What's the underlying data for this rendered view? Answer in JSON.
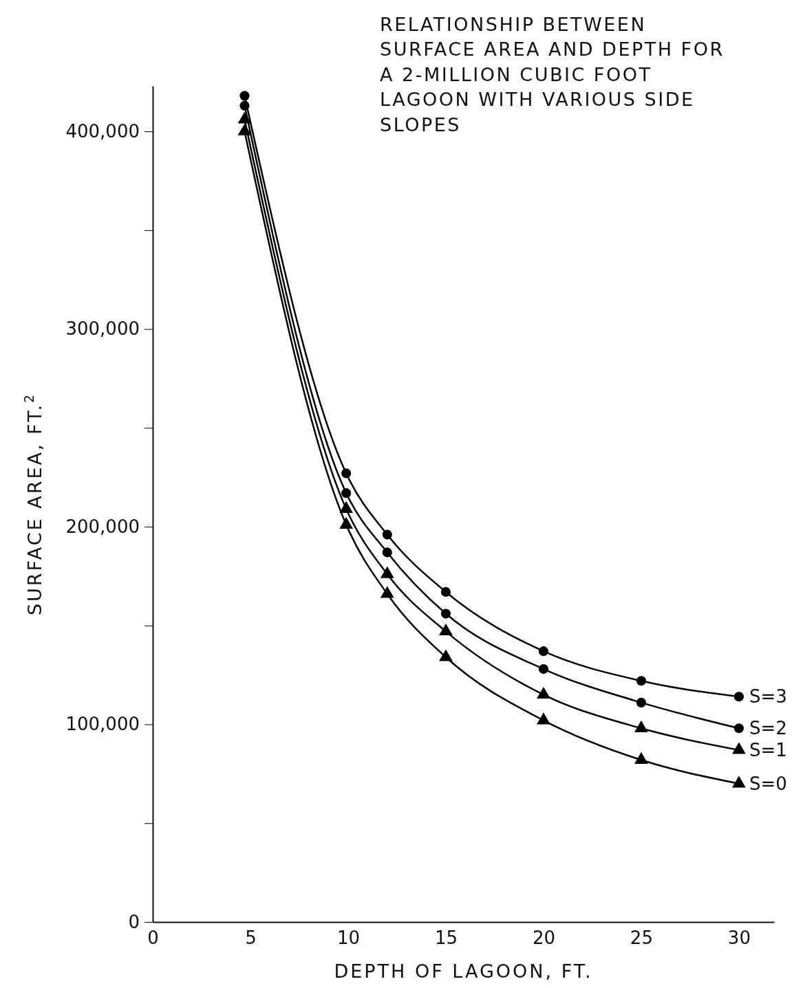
{
  "chart_data": {
    "type": "line",
    "title": "RELATIONSHIP BETWEEN SURFACE AREA AND DEPTH FOR A 2-MILLION CUBIC FOOT LAGOON WITH VARIOUS SIDE SLOPES",
    "xlabel": "DEPTH OF LAGOON, FT.",
    "ylabel": "SURFACE AREA, FT.$^{2}$",
    "xlim": [
      0,
      31.8
    ],
    "ylim": [
      0,
      423000
    ],
    "xticks": [
      0,
      5,
      10,
      15,
      20,
      25,
      30
    ],
    "yticks": [
      0,
      {
        "value": 50000,
        "label": null
      },
      {
        "value": 100000,
        "label": "100,000"
      },
      {
        "value": 150000,
        "label": null
      },
      {
        "value": 200000,
        "label": "200,000"
      },
      {
        "value": 250000,
        "label": null
      },
      {
        "value": 300000,
        "label": "300,000"
      },
      {
        "value": 350000,
        "label": null
      },
      {
        "value": 400000,
        "label": "400,000"
      }
    ],
    "x": [
      4.7,
      9.9,
      12,
      15,
      20,
      25,
      30
    ],
    "grid": false,
    "line_style": "solid",
    "series": [
      {
        "name": "S=3",
        "color": "#000000",
        "marker": "circle",
        "values": [
          418000,
          227000,
          196000,
          167000,
          137000,
          122000,
          114000
        ]
      },
      {
        "name": "S=2",
        "color": "#000000",
        "marker": "circle",
        "values": [
          413000,
          217000,
          187000,
          156000,
          128000,
          111000,
          98000
        ]
      },
      {
        "name": "S=1",
        "color": "#000000",
        "marker": "triangle",
        "values": [
          406000,
          209000,
          176000,
          147000,
          115000,
          98000,
          87000
        ]
      },
      {
        "name": "S=0",
        "color": "#000000",
        "marker": "triangle",
        "values": [
          400000,
          201000,
          166000,
          134000,
          102000,
          82000,
          70000
        ]
      }
    ]
  }
}
